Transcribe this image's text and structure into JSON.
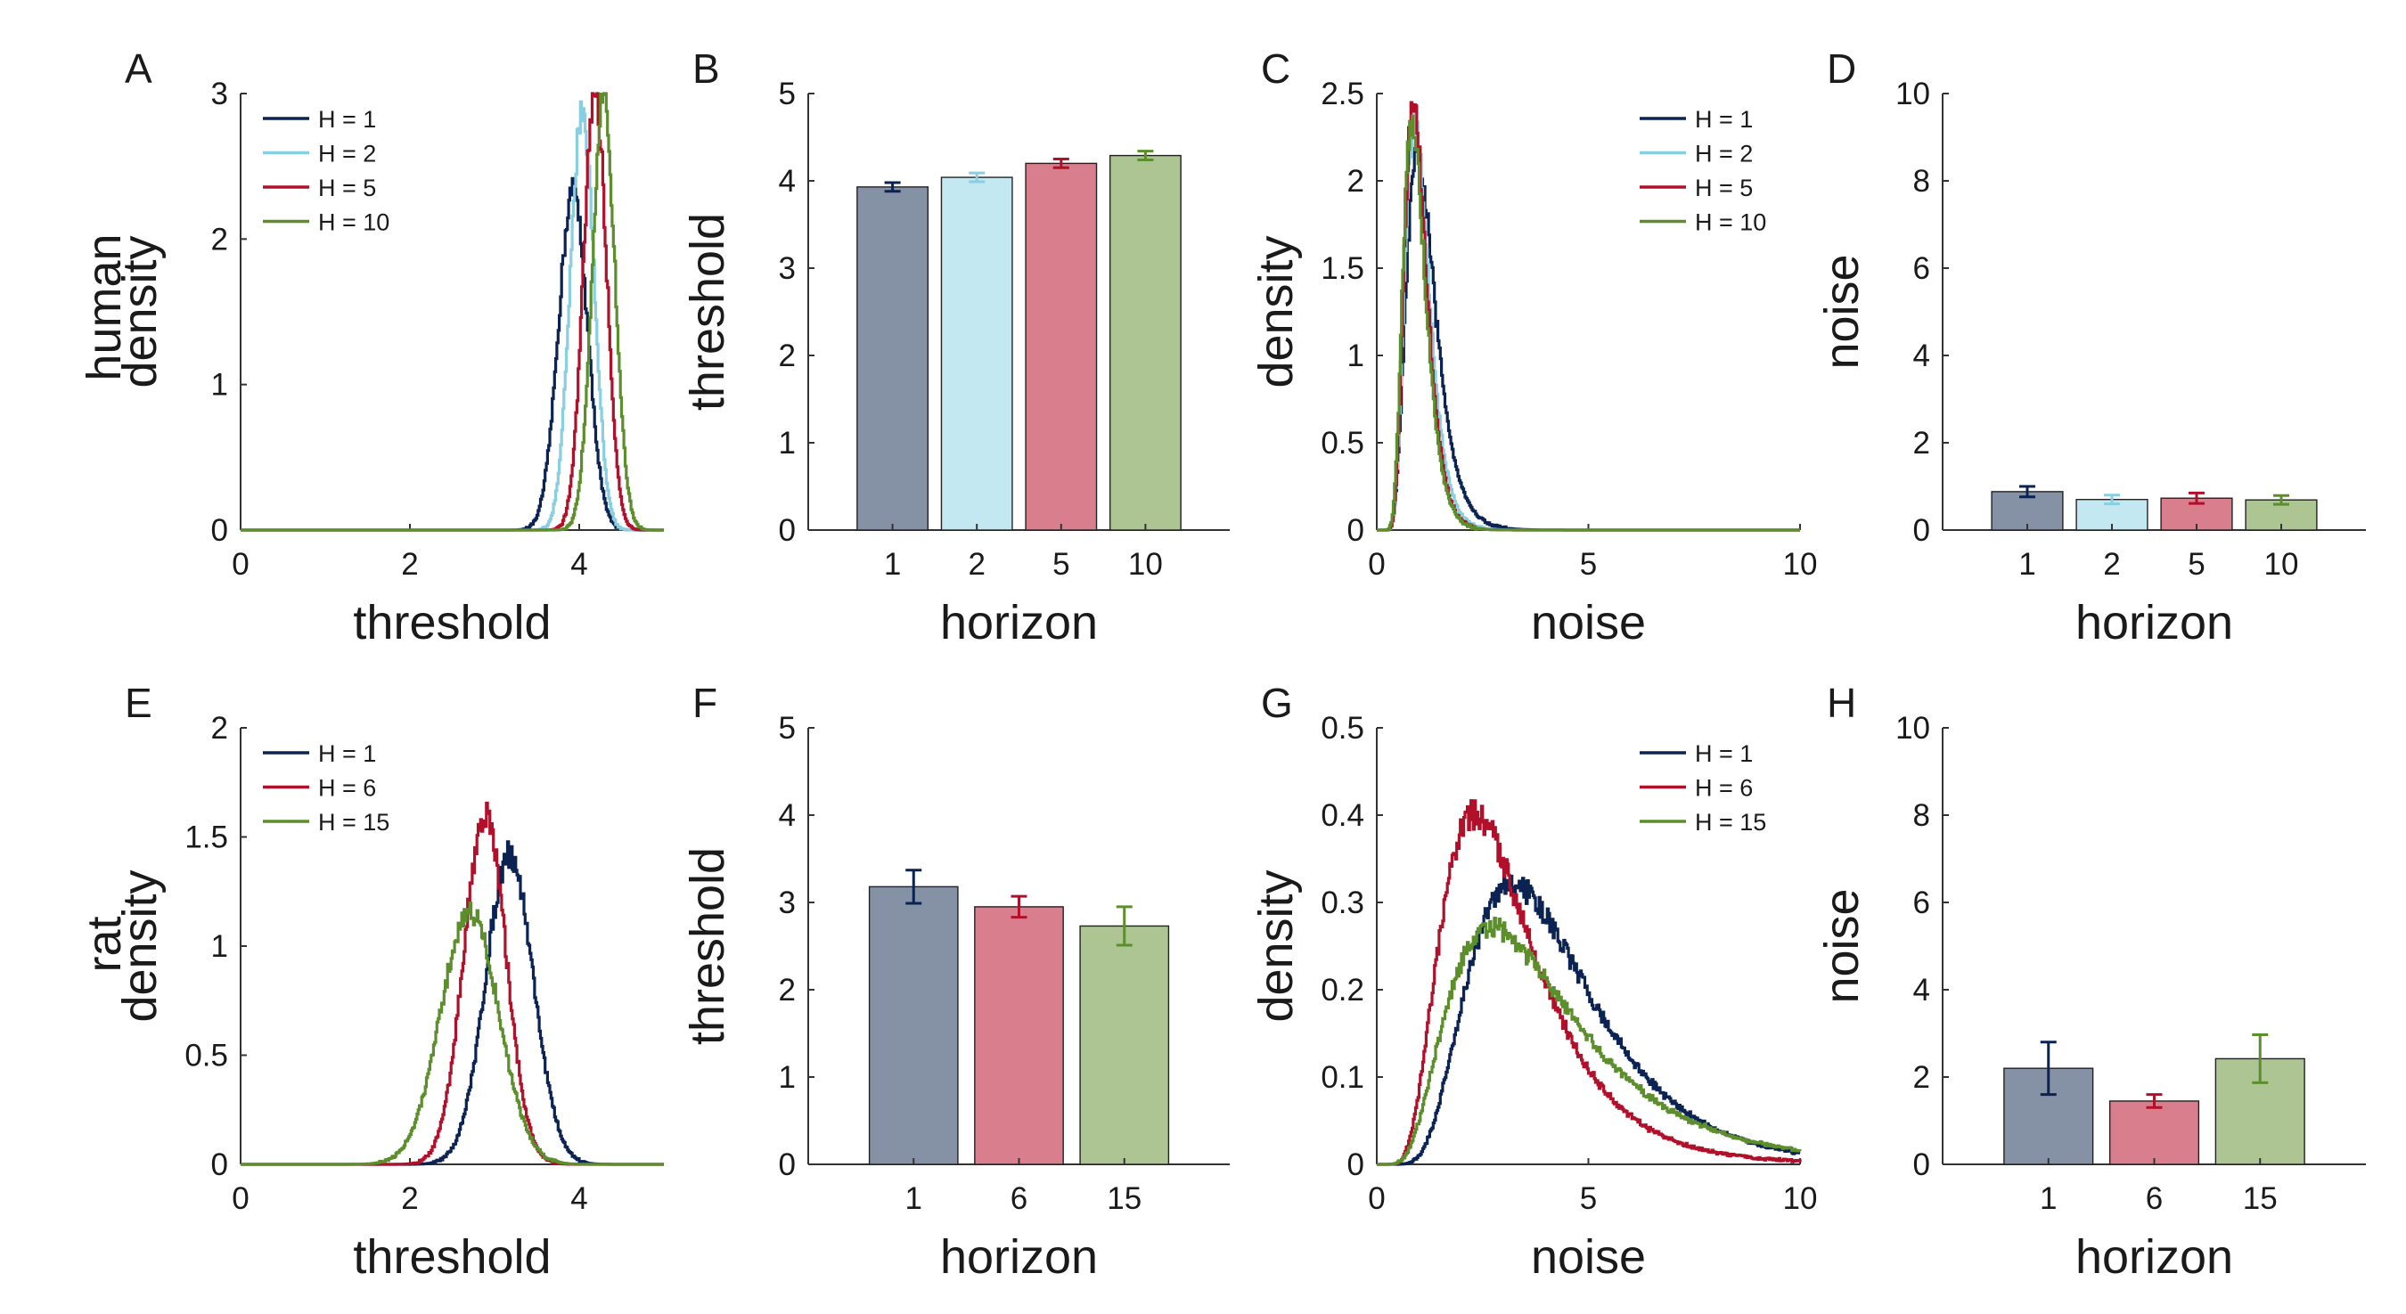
{
  "colors": {
    "navy": "#0b2352",
    "light_blue": "#87cfe1",
    "crimson": "#b1102b",
    "olive": "#5c8f2b",
    "bar_navy": "#8591a5",
    "bar_light_blue": "#c3e8f1",
    "bar_crimson": "#d87e8c",
    "bar_olive": "#adc493"
  },
  "row_labels": {
    "top": "human",
    "bottom": "rat"
  },
  "chart_data": [
    {
      "id": "A",
      "panel_label": "A",
      "type": "line",
      "xlabel": "threshold",
      "ylabel": "density",
      "xlim": [
        0,
        5
      ],
      "ylim": [
        0,
        3
      ],
      "xticks": [
        0,
        2,
        4
      ],
      "yticks": [
        0,
        1,
        2,
        3
      ],
      "legend": "top-left",
      "series": [
        {
          "name": "H = 1",
          "color": "#0b2352",
          "mu": 3.92,
          "sigma": 0.17,
          "peak": 2.34
        },
        {
          "name": "H = 2",
          "color": "#87cfe1",
          "mu": 4.03,
          "sigma": 0.14,
          "peak": 2.9
        },
        {
          "name": "H = 5",
          "color": "#b1102b",
          "mu": 4.18,
          "sigma": 0.135,
          "peak": 3.03
        },
        {
          "name": "H = 10",
          "color": "#5c8f2b",
          "mu": 4.28,
          "sigma": 0.135,
          "peak": 2.97
        }
      ]
    },
    {
      "id": "B",
      "panel_label": "B",
      "type": "bar",
      "xlabel": "horizon",
      "ylabel": "threshold",
      "ylim": [
        0,
        5
      ],
      "yticks": [
        0,
        1,
        2,
        3,
        4,
        5
      ],
      "categories": [
        "1",
        "2",
        "5",
        "10"
      ],
      "values": [
        3.93,
        4.04,
        4.2,
        4.29
      ],
      "errors": [
        0.05,
        0.05,
        0.05,
        0.05
      ],
      "bar_colors": [
        "#8591a5",
        "#c3e8f1",
        "#d87e8c",
        "#adc493"
      ],
      "error_colors": [
        "#0b2352",
        "#87cfe1",
        "#b1102b",
        "#5c8f2b"
      ]
    },
    {
      "id": "C",
      "panel_label": "C",
      "type": "line",
      "xlabel": "noise",
      "ylabel": "density",
      "xlim": [
        0,
        10
      ],
      "ylim": [
        0,
        2.5
      ],
      "xticks": [
        0,
        5,
        10
      ],
      "yticks": [
        0,
        0.5,
        1,
        1.5,
        2,
        2.5
      ],
      "legend": "top-right",
      "series": [
        {
          "name": "H = 1",
          "color": "#0b2352",
          "mode": 0.95,
          "spread": 0.36,
          "peak": 2.13
        },
        {
          "name": "H = 2",
          "color": "#87cfe1",
          "mode": 0.88,
          "spread": 0.32,
          "peak": 2.33
        },
        {
          "name": "H = 5",
          "color": "#b1102b",
          "mode": 0.85,
          "spread": 0.31,
          "peak": 2.42
        },
        {
          "name": "H = 10",
          "color": "#5c8f2b",
          "mode": 0.82,
          "spread": 0.32,
          "peak": 2.33
        }
      ]
    },
    {
      "id": "D",
      "panel_label": "D",
      "type": "bar",
      "xlabel": "horizon",
      "ylabel": "noise",
      "ylim": [
        0,
        10
      ],
      "yticks": [
        0,
        2,
        4,
        6,
        8,
        10
      ],
      "categories": [
        "1",
        "2",
        "5",
        "10"
      ],
      "values": [
        0.88,
        0.7,
        0.73,
        0.69
      ],
      "errors": [
        0.12,
        0.1,
        0.12,
        0.1
      ],
      "bar_colors": [
        "#8591a5",
        "#c3e8f1",
        "#d87e8c",
        "#adc493"
      ],
      "error_colors": [
        "#0b2352",
        "#87cfe1",
        "#b1102b",
        "#5c8f2b"
      ]
    },
    {
      "id": "E",
      "panel_label": "E",
      "type": "line",
      "xlabel": "threshold",
      "ylabel": "density",
      "xlim": [
        0,
        5
      ],
      "ylim": [
        0,
        2
      ],
      "xticks": [
        0,
        2,
        4
      ],
      "yticks": [
        0,
        0.5,
        1,
        1.5,
        2
      ],
      "legend": "top-left",
      "series": [
        {
          "name": "H = 1",
          "color": "#0b2352",
          "mu": 3.17,
          "sigma": 0.28,
          "peak": 1.42
        },
        {
          "name": "H = 6",
          "color": "#b1102b",
          "mu": 2.88,
          "sigma": 0.25,
          "peak": 1.6
        },
        {
          "name": "H = 15",
          "color": "#5c8f2b",
          "mu": 2.7,
          "sigma": 0.34,
          "peak": 1.16
        }
      ]
    },
    {
      "id": "F",
      "panel_label": "F",
      "type": "bar",
      "xlabel": "horizon",
      "ylabel": "threshold",
      "ylim": [
        0,
        5
      ],
      "yticks": [
        0,
        1,
        2,
        3,
        4,
        5
      ],
      "categories": [
        "1",
        "6",
        "15"
      ],
      "values": [
        3.18,
        2.95,
        2.73
      ],
      "errors": [
        0.19,
        0.12,
        0.22
      ],
      "bar_colors": [
        "#8591a5",
        "#d87e8c",
        "#adc493"
      ],
      "error_colors": [
        "#0b2352",
        "#b1102b",
        "#5c8f2b"
      ]
    },
    {
      "id": "G",
      "panel_label": "G",
      "type": "line",
      "xlabel": "noise",
      "ylabel": "density",
      "xlim": [
        0,
        10
      ],
      "ylim": [
        0,
        0.5
      ],
      "xticks": [
        0,
        5,
        10
      ],
      "yticks": [
        0,
        0.1,
        0.2,
        0.3,
        0.4,
        0.5
      ],
      "legend": "top-right",
      "series": [
        {
          "name": "H = 1",
          "color": "#0b2352",
          "mode": 3.2,
          "spread": 0.45,
          "peak": 0.32
        },
        {
          "name": "H = 6",
          "color": "#b1102b",
          "mode": 2.3,
          "spread": 0.48,
          "peak": 0.4
        },
        {
          "name": "H = 15",
          "color": "#5c8f2b",
          "mode": 2.7,
          "spread": 0.55,
          "peak": 0.27
        }
      ]
    },
    {
      "id": "H",
      "panel_label": "H",
      "type": "bar",
      "xlabel": "horizon",
      "ylabel": "noise",
      "ylim": [
        0,
        10
      ],
      "yticks": [
        0,
        2,
        4,
        6,
        8,
        10
      ],
      "categories": [
        "1",
        "6",
        "15"
      ],
      "values": [
        2.2,
        1.45,
        2.42
      ],
      "errors": [
        0.6,
        0.15,
        0.55
      ],
      "bar_colors": [
        "#8591a5",
        "#d87e8c",
        "#adc493"
      ],
      "error_colors": [
        "#0b2352",
        "#b1102b",
        "#5c8f2b"
      ]
    }
  ]
}
